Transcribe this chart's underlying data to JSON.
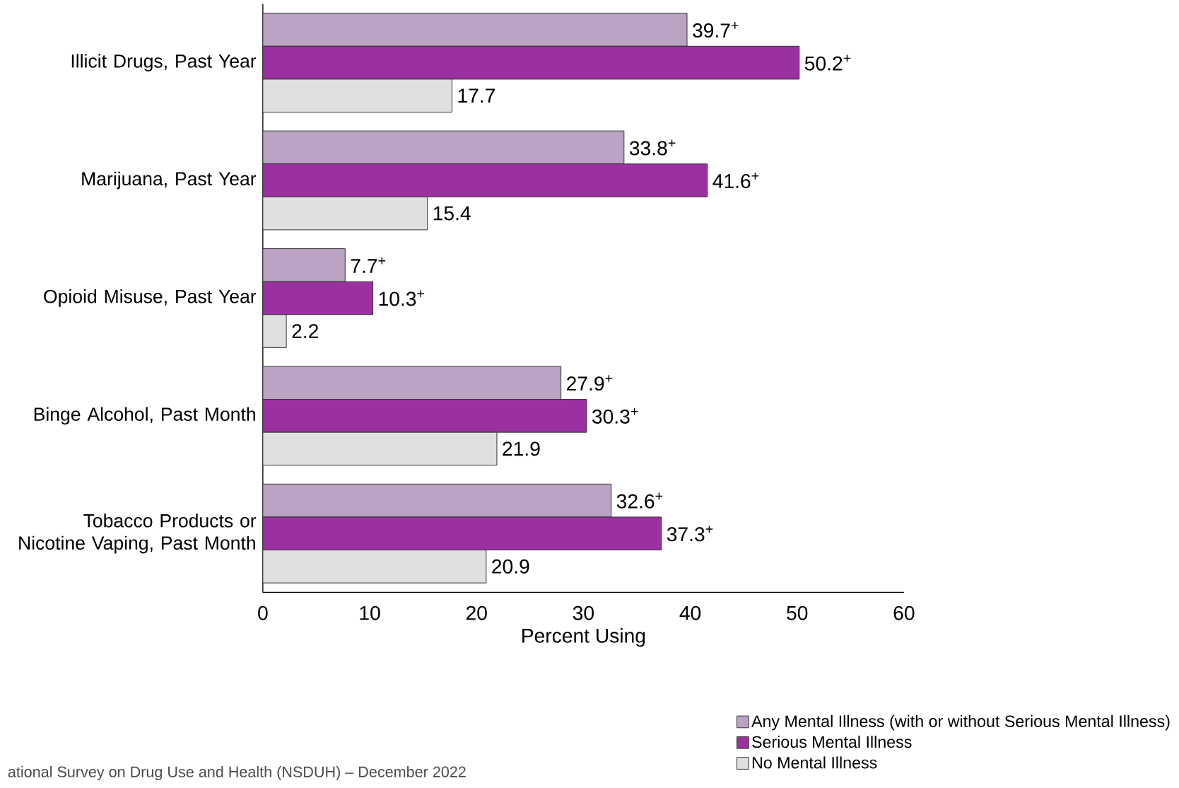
{
  "chart_data": {
    "type": "bar",
    "orientation": "horizontal",
    "xlabel": "Percent Using",
    "categories": [
      "Illicit Drugs, Past Year",
      "Marijuana, Past Year",
      "Opioid Misuse, Past Year",
      "Binge Alcohol, Past Month",
      "Tobacco Products or Nicotine Vaping, Past Month"
    ],
    "series": [
      {
        "name": "Any Mental Illness (with or without Serious Mental Illness)",
        "color": "#bba3c4",
        "values": [
          39.7,
          33.8,
          7.7,
          27.9,
          32.6
        ],
        "value_labels": [
          "39.7$^{+}$",
          "33.8$^{+}$",
          "7.7$^{+}$",
          "27.9$^{+}$",
          "32.6$^{+}$"
        ]
      },
      {
        "name": "Serious Mental Illness",
        "color": "#9b30a0",
        "values": [
          50.2,
          41.6,
          10.3,
          30.3,
          37.3
        ],
        "value_labels": [
          "50.2$^{+}$",
          "41.6$^{+}$",
          "10.3$^{+}$",
          "30.3$^{+}$",
          "37.3$^{+}$"
        ]
      },
      {
        "name": "No Mental Illness",
        "color": "#e0e0e0",
        "values": [
          17.7,
          15.4,
          2.2,
          21.9,
          20.9
        ],
        "value_labels": [
          "17.7",
          "15.4",
          "2.2",
          "21.9",
          "20.9"
        ]
      }
    ],
    "xlim": [
      0,
      60
    ],
    "xticks": [
      0,
      10,
      20,
      30,
      40,
      50,
      60
    ],
    "legend": "bottom right",
    "grid": false,
    "annotations": [
      "ational Survey on Drug Use and Health (NSDUH) – December 2022"
    ]
  }
}
